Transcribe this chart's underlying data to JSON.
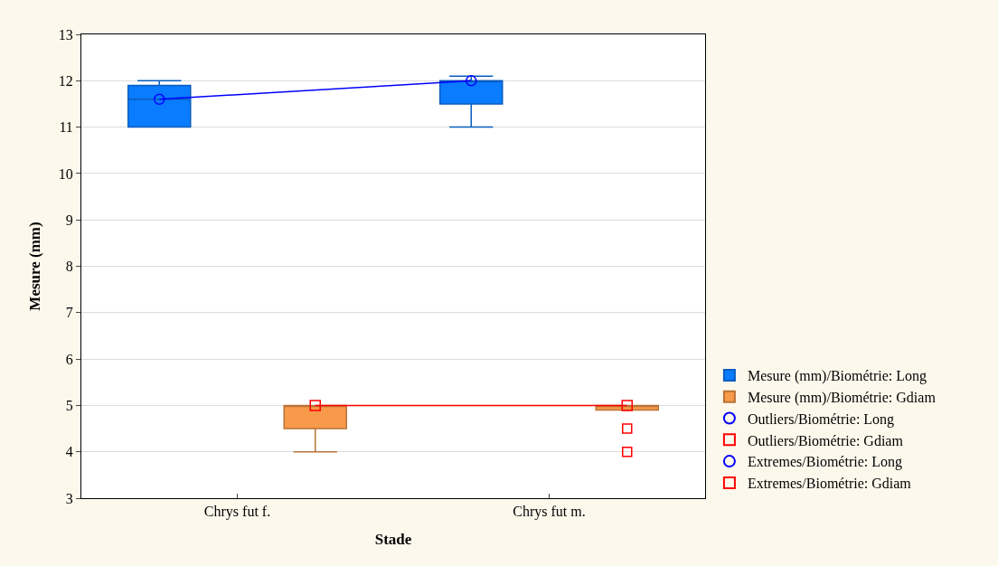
{
  "chart_data": {
    "type": "box",
    "xlabel": "Stade",
    "ylabel": "Mesure (mm)",
    "categories": [
      "Chrys fut f.",
      "Chrys fut m."
    ],
    "ylim": [
      3,
      13
    ],
    "yticks": [
      3,
      4,
      5,
      6,
      7,
      8,
      9,
      10,
      11,
      12,
      13
    ],
    "grid": "y",
    "legend": "bottom right",
    "series": [
      {
        "name": "Mesure (mm)/Biométrie: Long",
        "color": "#0a7cff",
        "boxes": [
          {
            "low": 11,
            "q1": 11,
            "median": 11.6,
            "q3": 11.9,
            "high": 12
          },
          {
            "low": 11,
            "q1": 11.5,
            "median": 12,
            "q3": 12,
            "high": 12.1
          }
        ]
      },
      {
        "name": "Mesure (mm)/Biométrie: Gdiam",
        "color": "#f79a4a",
        "boxes": [
          {
            "low": 4,
            "q1": 4.5,
            "median": 5,
            "q3": 5,
            "high": 5
          },
          {
            "low": 4.9,
            "q1": 4.9,
            "median": 5,
            "q3": 5,
            "high": 5
          }
        ]
      },
      {
        "type": "line",
        "color": "#0000ff",
        "marker": "circle",
        "values": [
          11.6,
          12
        ]
      },
      {
        "type": "line",
        "color": "#ff0000",
        "marker": "square",
        "values": [
          5,
          5
        ]
      },
      {
        "type": "scatter",
        "name": "Outliers/Biométrie: Long",
        "color": "#0000ff",
        "marker": "circle",
        "values": [
          null,
          null
        ]
      },
      {
        "type": "scatter",
        "name": "Outliers/Biométrie: Gdiam",
        "color": "#ff0000",
        "marker": "square",
        "values": [
          null,
          4.5
        ]
      },
      {
        "type": "scatter",
        "name": "Extremes/Biométrie: Long",
        "color": "#0000ff",
        "marker": "circle",
        "values": [
          null,
          null
        ]
      },
      {
        "type": "scatter",
        "name": "Extremes/Biométrie: Gdiam",
        "color": "#ff0000",
        "marker": "square",
        "values": [
          null,
          4
        ]
      }
    ]
  }
}
